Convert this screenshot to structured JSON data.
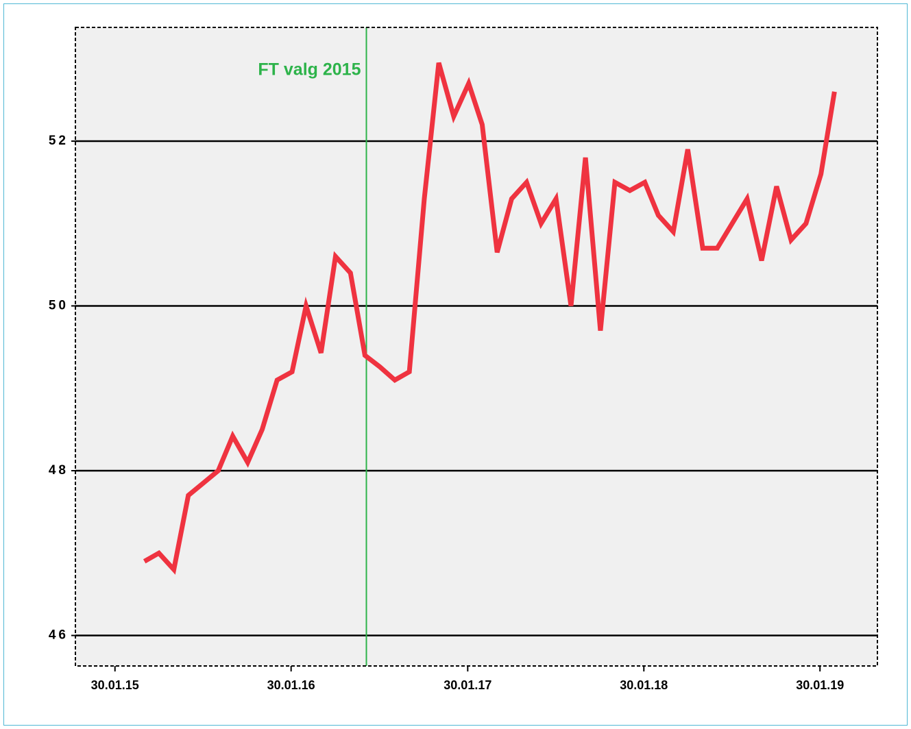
{
  "chart_data": {
    "type": "line",
    "annotation": {
      "text": "FT valg 2015",
      "x": "2016-07-04",
      "color": "#2db34a"
    },
    "x": [
      "2015-04-01",
      "2015-05-01",
      "2015-06-01",
      "2015-07-01",
      "2015-08-01",
      "2015-09-01",
      "2015-10-01",
      "2015-11-01",
      "2015-12-01",
      "2016-01-01",
      "2016-02-01",
      "2016-03-01",
      "2016-04-01",
      "2016-05-01",
      "2016-06-01",
      "2016-07-01",
      "2016-08-01",
      "2016-09-01",
      "2016-10-01",
      "2016-11-01",
      "2016-12-01",
      "2017-01-01",
      "2017-02-01",
      "2017-03-01",
      "2017-04-01",
      "2017-05-01",
      "2017-06-01",
      "2017-07-01",
      "2017-08-01",
      "2017-09-01",
      "2017-10-01",
      "2017-11-01",
      "2017-12-01",
      "2018-01-01",
      "2018-02-01",
      "2018-03-01",
      "2018-04-01",
      "2018-05-01",
      "2018-06-01",
      "2018-07-01",
      "2018-08-01",
      "2018-09-01",
      "2018-10-01",
      "2018-11-01",
      "2018-12-01",
      "2019-01-01",
      "2019-02-01",
      "2019-03-01"
    ],
    "series": [
      {
        "color": "#ef3340",
        "values": [
          46.9,
          47.0,
          46.8,
          47.7,
          47.85,
          48.0,
          48.42,
          48.1,
          48.5,
          49.1,
          49.2,
          50.0,
          49.43,
          50.6,
          50.4,
          49.4,
          49.26,
          49.1,
          49.2,
          51.3,
          52.95,
          52.3,
          52.7,
          52.2,
          50.65,
          51.3,
          51.5,
          51.0,
          51.3,
          50.0,
          51.8,
          49.7,
          51.5,
          51.4,
          51.5,
          51.1,
          50.9,
          51.9,
          50.7,
          50.7,
          51.0,
          51.3,
          50.55,
          51.45,
          50.8,
          51.0,
          51.6,
          52.6
        ]
      }
    ],
    "xlim": [
      "2014-11-09",
      "2019-05-29"
    ],
    "xticks": [
      {
        "value": "2015-01-30",
        "label": "30.01.15"
      },
      {
        "value": "2016-01-30",
        "label": "30.01.16"
      },
      {
        "value": "2017-01-30",
        "label": "30.01.17"
      },
      {
        "value": "2018-01-30",
        "label": "30.01.18"
      },
      {
        "value": "2019-01-30",
        "label": "30.01.19"
      }
    ],
    "ylim": [
      45.63,
      53.38
    ],
    "yticks": [
      46,
      48,
      50,
      52
    ],
    "grid": true
  }
}
